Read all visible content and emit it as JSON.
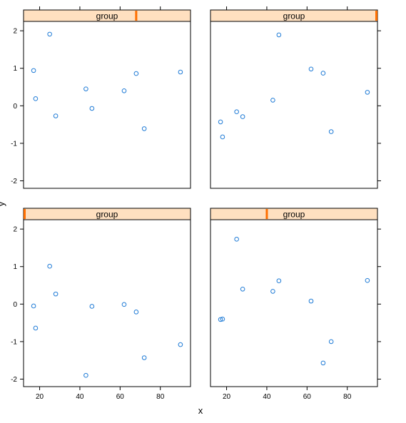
{
  "chart_data": {
    "type": "scatter",
    "layout": "2x2 lattice panels with shared axes",
    "xlabel": "x",
    "ylabel": "y",
    "xlim": [
      12,
      95
    ],
    "ylim": [
      -2.2,
      2.25
    ],
    "x_ticks": [
      20,
      40,
      60,
      80
    ],
    "x_tick_labels": [
      "20",
      "40",
      "60",
      "80"
    ],
    "y_ticks": [
      -2,
      -1,
      0,
      1,
      2
    ],
    "y_tick_labels": [
      "-2",
      "-1",
      "0",
      "1",
      "2"
    ],
    "strip_color": "#ffe0c0",
    "strip_indicator_color": "#ff6f00",
    "point_color": "#1f7bd6",
    "panels": [
      {
        "strip_label": "group",
        "strip_marker_x": 68,
        "points": [
          {
            "x": 17,
            "y": 0.94
          },
          {
            "x": 18,
            "y": 0.19
          },
          {
            "x": 25,
            "y": 1.91
          },
          {
            "x": 28,
            "y": -0.27
          },
          {
            "x": 43,
            "y": 0.45
          },
          {
            "x": 46,
            "y": -0.07
          },
          {
            "x": 62,
            "y": 0.4
          },
          {
            "x": 68,
            "y": 0.86
          },
          {
            "x": 72,
            "y": -0.61
          },
          {
            "x": 90,
            "y": 0.9
          }
        ]
      },
      {
        "strip_label": "group",
        "strip_marker_x": 95,
        "points": [
          {
            "x": 17,
            "y": -0.43
          },
          {
            "x": 18,
            "y": -0.83
          },
          {
            "x": 25,
            "y": -0.16
          },
          {
            "x": 28,
            "y": -0.29
          },
          {
            "x": 43,
            "y": 0.15
          },
          {
            "x": 46,
            "y": 1.89
          },
          {
            "x": 62,
            "y": 0.98
          },
          {
            "x": 68,
            "y": 0.87
          },
          {
            "x": 72,
            "y": -0.69
          },
          {
            "x": 90,
            "y": 0.36
          }
        ]
      },
      {
        "strip_label": "group",
        "strip_marker_x": 12.5,
        "points": [
          {
            "x": 17,
            "y": -0.05
          },
          {
            "x": 18,
            "y": -0.64
          },
          {
            "x": 25,
            "y": 1.01
          },
          {
            "x": 28,
            "y": 0.27
          },
          {
            "x": 43,
            "y": -1.9
          },
          {
            "x": 46,
            "y": -0.06
          },
          {
            "x": 62,
            "y": -0.01
          },
          {
            "x": 68,
            "y": -0.21
          },
          {
            "x": 72,
            "y": -1.43
          },
          {
            "x": 90,
            "y": -1.08
          }
        ]
      },
      {
        "strip_label": "group",
        "strip_marker_x": 40,
        "points": [
          {
            "x": 17,
            "y": -0.41
          },
          {
            "x": 18,
            "y": -0.4
          },
          {
            "x": 25,
            "y": 1.73
          },
          {
            "x": 28,
            "y": 0.4
          },
          {
            "x": 43,
            "y": 0.34
          },
          {
            "x": 46,
            "y": 0.62
          },
          {
            "x": 62,
            "y": 0.08
          },
          {
            "x": 68,
            "y": -1.57
          },
          {
            "x": 72,
            "y": -1.0
          },
          {
            "x": 90,
            "y": 0.63
          }
        ]
      }
    ]
  }
}
